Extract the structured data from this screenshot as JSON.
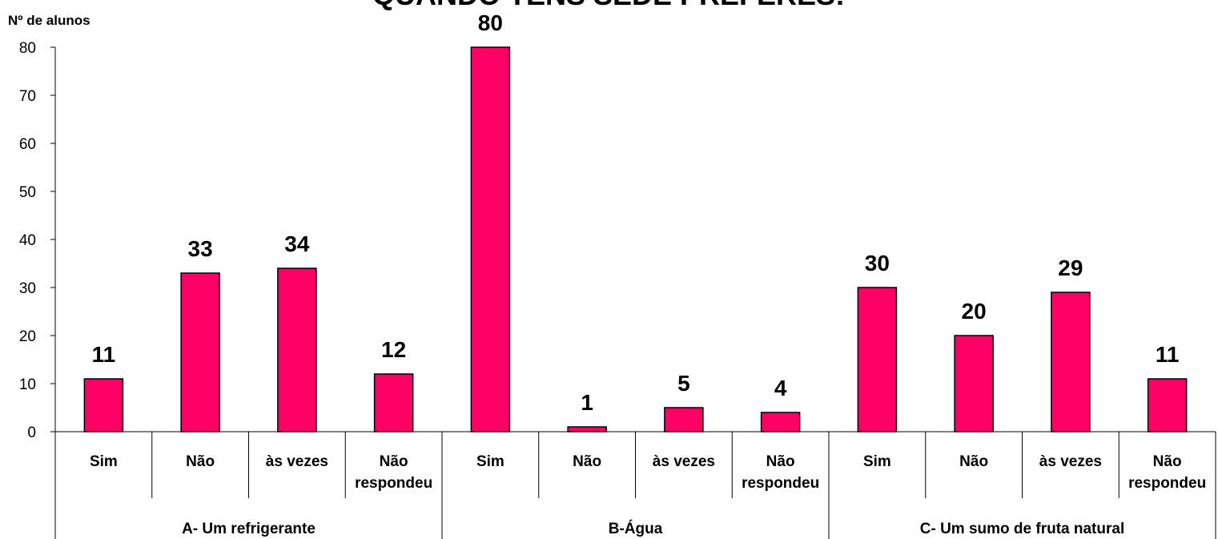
{
  "chart_data": {
    "type": "bar",
    "title": "QUANDO TENS SEDE PREFERES:",
    "ylabel": "Nº de alunos",
    "ylim": [
      0,
      80
    ],
    "yticks": [
      0,
      10,
      20,
      30,
      40,
      50,
      60,
      70,
      80
    ],
    "bar_color": "#FF0066",
    "grid": false,
    "groups": [
      {
        "label": "A- Um refrigerante",
        "categories": [
          {
            "label": [
              "Sim"
            ],
            "value": 11
          },
          {
            "label": [
              "Não"
            ],
            "value": 33
          },
          {
            "label": [
              "às vezes"
            ],
            "value": 34
          },
          {
            "label": [
              "Não",
              "respondeu"
            ],
            "value": 12
          }
        ]
      },
      {
        "label": "B-Água",
        "categories": [
          {
            "label": [
              "Sim"
            ],
            "value": 80
          },
          {
            "label": [
              "Não"
            ],
            "value": 1
          },
          {
            "label": [
              "às vezes"
            ],
            "value": 5
          },
          {
            "label": [
              "Não",
              "respondeu"
            ],
            "value": 4
          }
        ]
      },
      {
        "label": "C- Um sumo de fruta natural",
        "categories": [
          {
            "label": [
              "Sim"
            ],
            "value": 30
          },
          {
            "label": [
              "Não"
            ],
            "value": 20
          },
          {
            "label": [
              "às vezes"
            ],
            "value": 29
          },
          {
            "label": [
              "Não",
              "respondeu"
            ],
            "value": 11
          }
        ]
      }
    ]
  }
}
